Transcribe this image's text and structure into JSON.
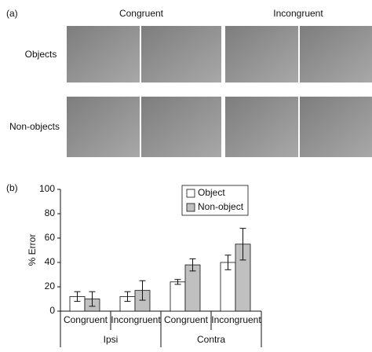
{
  "panel_a": {
    "label": "(a)",
    "columns": [
      "Congruent",
      "Incongruent"
    ],
    "rows": [
      "Objects",
      "Non-objects"
    ]
  },
  "chart_data": {
    "type": "bar",
    "panel_label": "(b)",
    "y_label": "% Error",
    "categories": [
      "Congruent",
      "Incongruent",
      "Congruent",
      "Incongruent"
    ],
    "groups": [
      "Ipsi",
      "Contra"
    ],
    "series": [
      {
        "name": "Object",
        "color": "#ffffff",
        "values": [
          12,
          12,
          24,
          40
        ],
        "errors": [
          4,
          4,
          2,
          6
        ]
      },
      {
        "name": "Non-object",
        "color": "#c0c0c0",
        "values": [
          10,
          17,
          38,
          55
        ],
        "errors": [
          6,
          8,
          5,
          13
        ]
      }
    ],
    "ylim": [
      0,
      100
    ],
    "yticks": [
      0,
      20,
      40,
      60,
      80,
      100
    ]
  }
}
